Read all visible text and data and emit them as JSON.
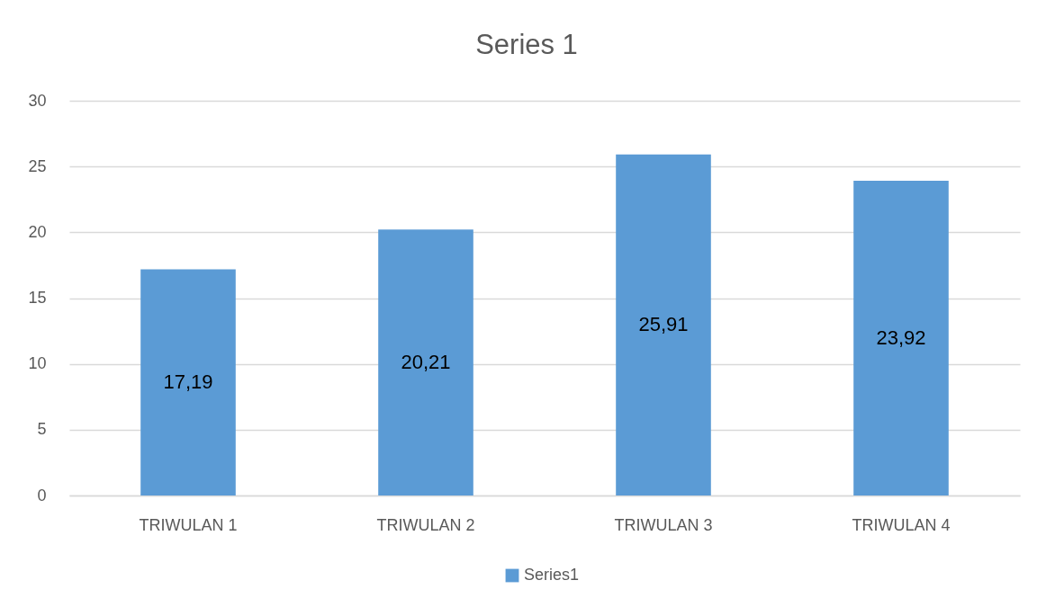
{
  "chart_data": {
    "type": "bar",
    "title": "Series 1",
    "categories": [
      "TRIWULAN 1",
      "TRIWULAN 2",
      "TRIWULAN 3",
      "TRIWULAN 4"
    ],
    "series": [
      {
        "name": "Series1",
        "color": "#5b9bd5",
        "values": [
          17.19,
          20.21,
          25.91,
          23.92
        ],
        "value_labels": [
          "17,19",
          "20,21",
          "25,91",
          "23,92"
        ]
      }
    ],
    "ylim": [
      0,
      30
    ],
    "yticks": [
      0,
      5,
      10,
      15,
      20,
      25,
      30
    ],
    "grid": "y",
    "legend": "bottom"
  }
}
